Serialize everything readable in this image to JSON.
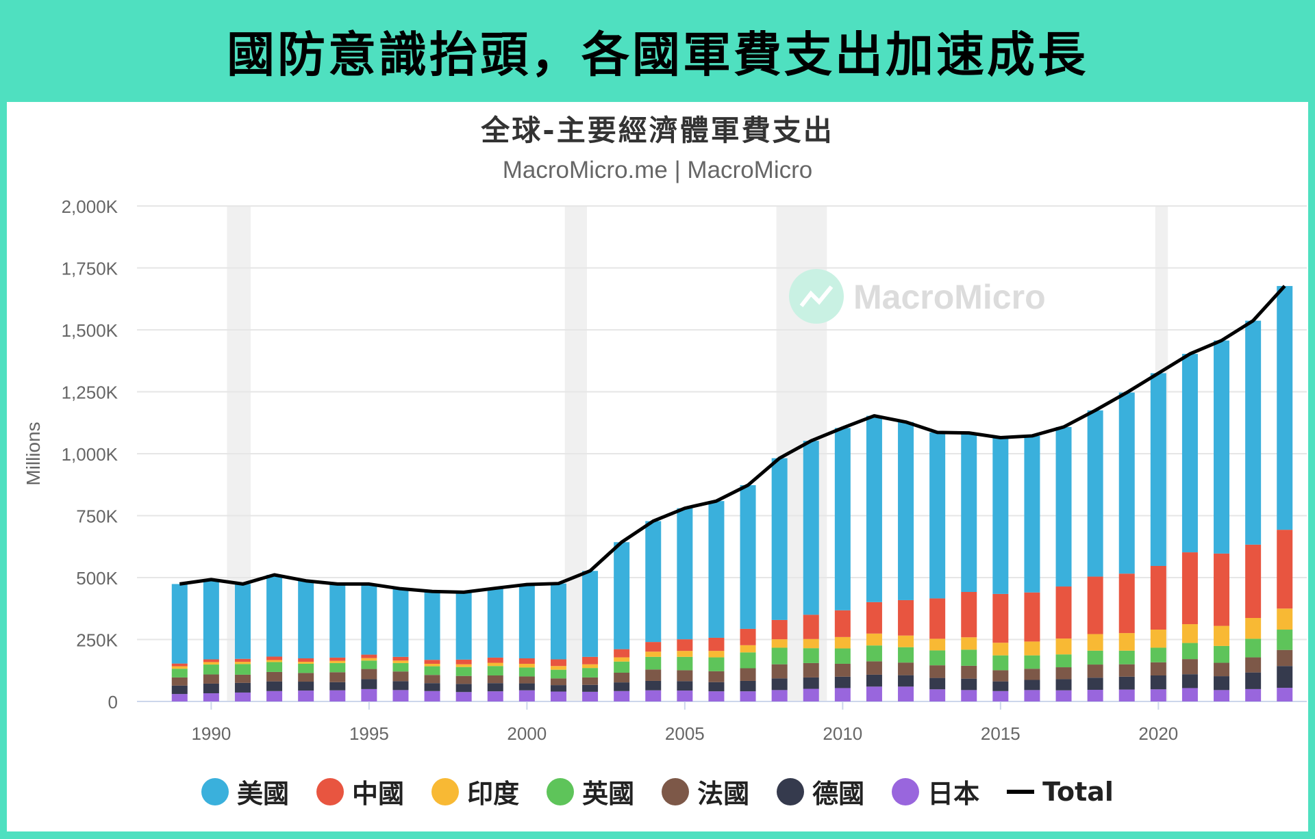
{
  "banner": {
    "title": "國防意識抬頭，各國軍費支出加速成長"
  },
  "chart_data": {
    "type": "bar",
    "title": "全球-主要經濟體軍費支出",
    "subtitle": "MacroMicro.me | MacroMicro",
    "watermark": "MacroMicro",
    "ylabel": "Millions",
    "ylim": [
      0,
      2000000
    ],
    "yticks": [
      {
        "value": 0,
        "label": "0"
      },
      {
        "value": 250000,
        "label": "250K"
      },
      {
        "value": 500000,
        "label": "500K"
      },
      {
        "value": 750000,
        "label": "750K"
      },
      {
        "value": 1000000,
        "label": "1,000K"
      },
      {
        "value": 1250000,
        "label": "1,250K"
      },
      {
        "value": 1500000,
        "label": "1,500K"
      },
      {
        "value": 1750000,
        "label": "1,750K"
      },
      {
        "value": 2000000,
        "label": "2,000K"
      }
    ],
    "xticks": [
      1990,
      1995,
      2000,
      2005,
      2010,
      2015,
      2020
    ],
    "xrange": [
      1988.3,
      2024.7
    ],
    "stacked": true,
    "grid": true,
    "legend_position": "bottom",
    "shaded_periods": [
      {
        "start": 1990.5,
        "end": 1991.25
      },
      {
        "start": 2001.2,
        "end": 2001.9
      },
      {
        "start": 2007.9,
        "end": 2009.5
      },
      {
        "start": 2019.9,
        "end": 2020.3
      }
    ],
    "x": [
      1989,
      1990,
      1991,
      1992,
      1993,
      1994,
      1995,
      1996,
      1997,
      1998,
      1999,
      2000,
      2001,
      2002,
      2003,
      2004,
      2005,
      2006,
      2007,
      2008,
      2009,
      2010,
      2011,
      2012,
      2013,
      2014,
      2015,
      2016,
      2017,
      2018,
      2019,
      2020,
      2021,
      2022,
      2023,
      2024
    ],
    "series": [
      {
        "name": "日本",
        "color": "#9966dd",
        "values": [
          30000,
          33000,
          36000,
          42000,
          44000,
          45000,
          50000,
          46000,
          42000,
          38000,
          41000,
          45000,
          40000,
          39000,
          42000,
          45000,
          44000,
          41000,
          41000,
          46000,
          51000,
          54000,
          60000,
          60000,
          49000,
          46000,
          42000,
          46000,
          45000,
          47000,
          48000,
          49000,
          54000,
          46000,
          50000,
          55000
        ]
      },
      {
        "name": "德國",
        "color": "#353a4d",
        "values": [
          34000,
          39000,
          39000,
          39000,
          36000,
          33000,
          40000,
          36000,
          32000,
          33000,
          33000,
          28000,
          26000,
          28000,
          35000,
          38000,
          38000,
          37000,
          42000,
          47000,
          46000,
          46000,
          48000,
          46000,
          46000,
          46000,
          39000,
          41000,
          45000,
          49000,
          52000,
          56000,
          56000,
          56000,
          67000,
          88000
        ]
      },
      {
        "name": "法國",
        "color": "#7d5848",
        "values": [
          33000,
          37000,
          33000,
          38000,
          35000,
          40000,
          41000,
          39000,
          33000,
          32000,
          31000,
          28000,
          27000,
          30000,
          39000,
          46000,
          44000,
          44000,
          51000,
          57000,
          58000,
          52000,
          54000,
          51000,
          51000,
          52000,
          45000,
          45000,
          48000,
          53000,
          50000,
          53000,
          61000,
          54000,
          61000,
          65000
        ]
      },
      {
        "name": "英國",
        "color": "#5ec45a",
        "values": [
          35000,
          40000,
          43000,
          40000,
          37000,
          37000,
          34000,
          34000,
          35000,
          36000,
          38000,
          36000,
          35000,
          38000,
          45000,
          51000,
          54000,
          56000,
          64000,
          67000,
          60000,
          62000,
          64000,
          62000,
          60000,
          65000,
          60000,
          54000,
          52000,
          56000,
          55000,
          59000,
          65000,
          68000,
          75000,
          82000
        ]
      },
      {
        "name": "印度",
        "color": "#f8b934",
        "values": [
          10000,
          10000,
          9000,
          8000,
          8000,
          9000,
          10000,
          10000,
          10000,
          11000,
          13000,
          15000,
          15000,
          15000,
          17000,
          21000,
          24000,
          26000,
          29000,
          34000,
          37000,
          46000,
          48000,
          47000,
          47000,
          50000,
          51000,
          56000,
          64000,
          67000,
          71000,
          73000,
          76000,
          81000,
          84000,
          85000
        ]
      },
      {
        "name": "中國",
        "color": "#e85540",
        "values": [
          11000,
          11000,
          12000,
          14000,
          14000,
          13000,
          14000,
          15000,
          16000,
          19000,
          21000,
          22000,
          27000,
          30000,
          33000,
          39000,
          47000,
          53000,
          66000,
          78000,
          98000,
          108000,
          127000,
          143000,
          163000,
          183000,
          197000,
          198000,
          210000,
          232000,
          240000,
          257000,
          290000,
          292000,
          296000,
          318000
        ]
      },
      {
        "name": "美國",
        "color": "#3ab0dc",
        "values": [
          321000,
          322000,
          302000,
          330000,
          313000,
          297000,
          285000,
          275000,
          276000,
          272000,
          280000,
          298000,
          306000,
          347000,
          432000,
          488000,
          529000,
          552000,
          580000,
          653000,
          702000,
          736000,
          752000,
          719000,
          670000,
          642000,
          631000,
          632000,
          644000,
          671000,
          731000,
          778000,
          801000,
          860000,
          904000,
          984000
        ]
      }
    ],
    "total": {
      "name": "Total",
      "color": "#000000",
      "values": [
        474000,
        492000,
        474000,
        511000,
        487000,
        474000,
        474000,
        455000,
        444000,
        441000,
        457000,
        472000,
        476000,
        527000,
        643000,
        728000,
        780000,
        809000,
        873000,
        982000,
        1052000,
        1104000,
        1153000,
        1128000,
        1086000,
        1084000,
        1065000,
        1072000,
        1108000,
        1175000,
        1247000,
        1325000,
        1403000,
        1457000,
        1537000,
        1677000
      ]
    }
  }
}
